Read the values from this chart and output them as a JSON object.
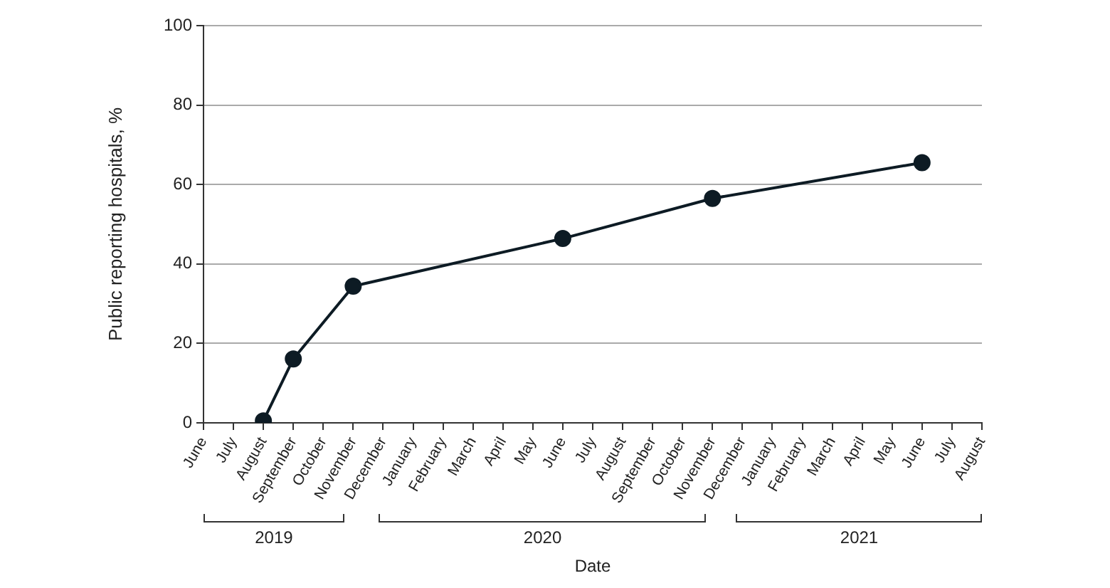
{
  "chart_data": {
    "type": "line",
    "xlabel": "Date",
    "ylabel": "Public reporting hospitals, %",
    "categories": [
      "June",
      "July",
      "August",
      "September",
      "October",
      "November",
      "December",
      "January",
      "February",
      "March",
      "April",
      "May",
      "June",
      "July",
      "August",
      "September",
      "October",
      "November",
      "December",
      "January",
      "February",
      "March",
      "April",
      "May",
      "June",
      "July",
      "August"
    ],
    "values": [
      null,
      null,
      0.5,
      16.1,
      null,
      34.4,
      null,
      null,
      null,
      null,
      null,
      null,
      46.4,
      null,
      null,
      null,
      null,
      56.5,
      null,
      null,
      null,
      null,
      null,
      null,
      65.5,
      null,
      null
    ],
    "color": "#0d1b24",
    "marker": "circle",
    "line_style": "solid",
    "ylim": [
      0,
      100
    ],
    "yticks": [
      0,
      20,
      40,
      60,
      80,
      100
    ],
    "grid": "y",
    "legend": false,
    "annotations": [
      "2019",
      "2020",
      "2021"
    ]
  }
}
